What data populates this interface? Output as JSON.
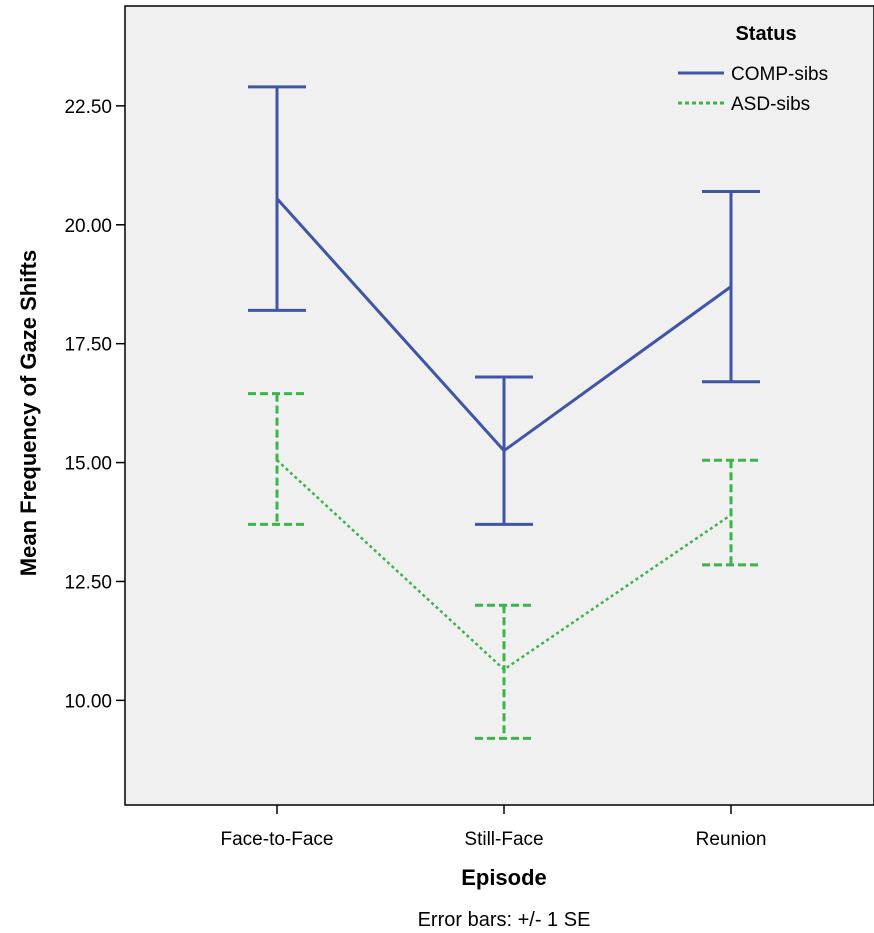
{
  "chart_data": {
    "type": "line",
    "xlabel": "Episode",
    "ylabel": "Mean Frequency of Gaze Shifts",
    "categories": [
      "Face-to-Face",
      "Still-Face",
      "Reunion"
    ],
    "ylim": [
      7.8,
      24.6
    ],
    "yticks": [
      "10.00",
      "12.50",
      "15.00",
      "17.50",
      "20.00",
      "22.50"
    ],
    "legend": {
      "title": "Status",
      "position": "top-right"
    },
    "series": [
      {
        "name": "COMP-sibs",
        "color": "#3f55a6",
        "style": "solid",
        "values": [
          20.55,
          15.25,
          18.7
        ],
        "error_low": [
          18.2,
          13.7,
          16.7
        ],
        "error_high": [
          22.9,
          16.8,
          20.7
        ]
      },
      {
        "name": "ASD-sibs",
        "color": "#3cb44a",
        "style": "dotted",
        "values": [
          15.05,
          10.65,
          13.9
        ],
        "error_low": [
          13.7,
          9.2,
          12.85
        ],
        "error_high": [
          16.45,
          12.0,
          15.05
        ]
      }
    ],
    "footnote": "Error bars: +/- 1 SE"
  }
}
